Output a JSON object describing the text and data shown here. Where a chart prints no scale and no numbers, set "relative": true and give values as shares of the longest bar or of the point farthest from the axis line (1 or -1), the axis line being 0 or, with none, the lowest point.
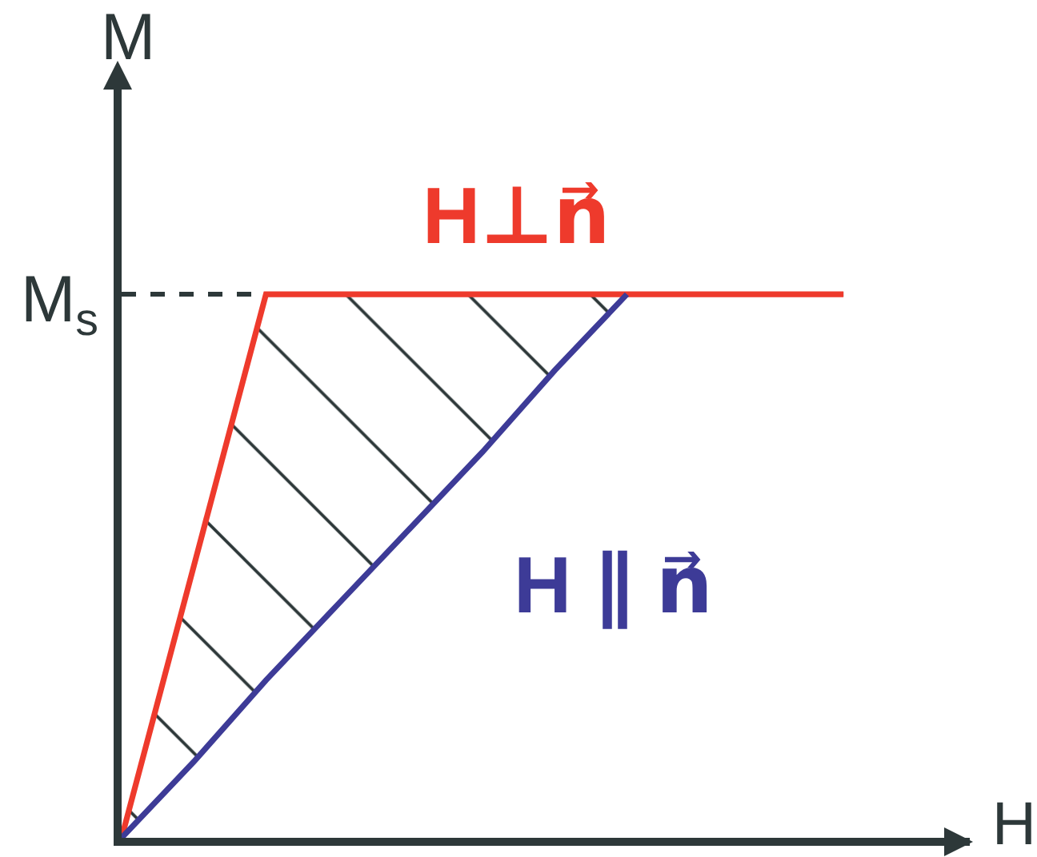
{
  "chart_data": {
    "type": "line",
    "xlabel": "H",
    "ylabel": "M",
    "relative": true,
    "legend": false,
    "marker": "none",
    "line_style": "solid",
    "categories": [
      null,
      null,
      null,
      null,
      null,
      null,
      null,
      null,
      null,
      null,
      null
    ],
    "series": [
      {
        "name": "H⊥n⃗",
        "color": "#ee3a2c",
        "values": [
          0,
          0.5,
          1,
          1,
          1,
          1,
          1,
          1,
          1,
          1,
          1
        ]
      },
      {
        "name": "H ∥ n⃗",
        "color": "#3d3b97",
        "values": [
          0,
          0.14,
          0.29,
          0.43,
          0.57,
          0.71,
          0.86,
          1,
          null,
          null,
          null
        ],
        "lower": [
          0,
          0.14,
          0.29,
          0.43,
          0.57,
          0.71,
          0.86,
          1,
          null,
          null,
          null
        ],
        "upper": [
          0,
          0.5,
          1,
          1,
          1,
          1,
          1,
          1,
          null,
          null,
          null
        ]
      }
    ],
    "ref_lines": [
      {
        "axis": "y",
        "value": 1,
        "label": "M$_{s}$",
        "color": "#2d3839",
        "line_style": "dashed"
      }
    ]
  }
}
